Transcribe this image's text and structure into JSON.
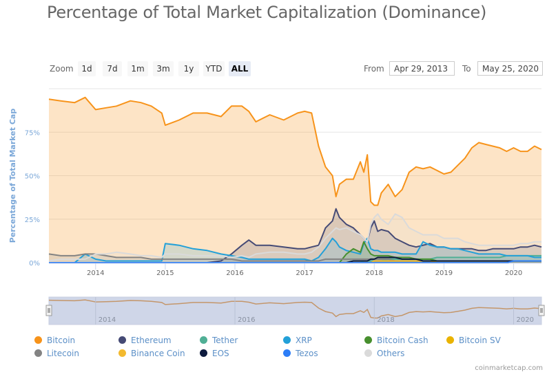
{
  "title": "Percentage of Total Market Capitalization (Dominance)",
  "range_selector": {
    "zoom_label": "Zoom",
    "buttons": [
      "1d",
      "7d",
      "1m",
      "3m",
      "1y",
      "YTD",
      "ALL"
    ],
    "active": "ALL",
    "from_label": "From",
    "from_value": "Apr 29, 2013",
    "to_label": "To",
    "to_value": "May 25, 2020"
  },
  "credit": "coinmarketcap.com",
  "chart_data": {
    "type": "area",
    "title": "Percentage of Total Market Capitalization (Dominance)",
    "ylabel": "Percentage of Total Market Cap",
    "xlabel": "",
    "ylim": [
      0,
      100
    ],
    "xlim": [
      2013.33,
      2020.4
    ],
    "y_ticks": [
      "0%",
      "25%",
      "50%",
      "75%"
    ],
    "y_tick_values": [
      0,
      25,
      50,
      75
    ],
    "x_ticks": [
      "2014",
      "2015",
      "2016",
      "2017",
      "2018",
      "2019",
      "2020"
    ],
    "x_tick_values": [
      2014,
      2015,
      2016,
      2017,
      2018,
      2019,
      2020
    ],
    "grid": true,
    "legend_position": "bottom",
    "navigator_ticks": [
      "2014",
      "2016",
      "2018",
      "2020"
    ],
    "x": [
      2013.33,
      2013.5,
      2013.7,
      2013.85,
      2014.0,
      2014.15,
      2014.3,
      2014.5,
      2014.65,
      2014.8,
      2014.95,
      2015.0,
      2015.2,
      2015.4,
      2015.6,
      2015.8,
      2015.95,
      2016.1,
      2016.2,
      2016.3,
      2016.5,
      2016.7,
      2016.9,
      2017.0,
      2017.1,
      2017.2,
      2017.3,
      2017.4,
      2017.45,
      2017.5,
      2017.6,
      2017.7,
      2017.8,
      2017.85,
      2017.9,
      2017.95,
      2018.0,
      2018.05,
      2018.1,
      2018.2,
      2018.3,
      2018.4,
      2018.5,
      2018.6,
      2018.7,
      2018.8,
      2018.9,
      2019.0,
      2019.1,
      2019.2,
      2019.3,
      2019.4,
      2019.5,
      2019.6,
      2019.7,
      2019.8,
      2019.9,
      2020.0,
      2020.1,
      2020.2,
      2020.3,
      2020.4
    ],
    "series": [
      {
        "name": "Bitcoin",
        "color": "#f7931a",
        "values": [
          94,
          93,
          92,
          95,
          88,
          89,
          90,
          93,
          92,
          90,
          86,
          79,
          82,
          86,
          86,
          84,
          90,
          90,
          87,
          81,
          85,
          82,
          86,
          87,
          86,
          67,
          55,
          50,
          38,
          45,
          48,
          48,
          58,
          52,
          62,
          35,
          33,
          33,
          40,
          45,
          38,
          42,
          52,
          55,
          54,
          55,
          53,
          51,
          52,
          56,
          60,
          66,
          69,
          68,
          67,
          66,
          64,
          66,
          64,
          64,
          67,
          65
        ]
      },
      {
        "name": "Ethereum",
        "color": "#454a75",
        "values": [
          0,
          0,
          0,
          0,
          0,
          0,
          0,
          0,
          0,
          0,
          0,
          0,
          0,
          0,
          0,
          1,
          5,
          10,
          13,
          10,
          10,
          9,
          8,
          8,
          9,
          10,
          20,
          24,
          31,
          26,
          22,
          20,
          16,
          14,
          12,
          20,
          24,
          18,
          19,
          18,
          14,
          12,
          10,
          9,
          10,
          11,
          9,
          9,
          8,
          8,
          8,
          8,
          7,
          7,
          8,
          8,
          8,
          8,
          9,
          9,
          10,
          9
        ]
      },
      {
        "name": "Tether",
        "color": "#50af95",
        "values": [
          0,
          0,
          0,
          0,
          0,
          0,
          0,
          0,
          0,
          0,
          0,
          0,
          0,
          0,
          0,
          0,
          0,
          0,
          0,
          0,
          0,
          0,
          0,
          0,
          0,
          0,
          0,
          0,
          0,
          0,
          0,
          0,
          0,
          1,
          1,
          1,
          1,
          1,
          1,
          2,
          2,
          2,
          2,
          2,
          2,
          2,
          3,
          3,
          3,
          3,
          3,
          3,
          3,
          3,
          3,
          3,
          4,
          4,
          4,
          4,
          4,
          4
        ]
      },
      {
        "name": "XRP",
        "color": "#23a0d8",
        "values": [
          0,
          0,
          0,
          5,
          2,
          1,
          1,
          1,
          1,
          1,
          1,
          11,
          10,
          8,
          7,
          5,
          4,
          3,
          2,
          2,
          2,
          2,
          2,
          2,
          1,
          3,
          8,
          14,
          12,
          9,
          7,
          6,
          5,
          11,
          14,
          8,
          7,
          7,
          6,
          6,
          6,
          5,
          5,
          5,
          12,
          10,
          9,
          9,
          8,
          8,
          7,
          6,
          5,
          5,
          5,
          5,
          4,
          4,
          4,
          4,
          3,
          3
        ]
      },
      {
        "name": "Bitcoin Cash",
        "color": "#478f2e",
        "values": [
          0,
          0,
          0,
          0,
          0,
          0,
          0,
          0,
          0,
          0,
          0,
          0,
          0,
          0,
          0,
          0,
          0,
          0,
          0,
          0,
          0,
          0,
          0,
          0,
          0,
          0,
          0,
          0,
          0,
          0,
          5,
          8,
          6,
          12,
          8,
          5,
          4,
          4,
          4,
          4,
          3,
          3,
          3,
          2,
          2,
          2,
          1,
          1,
          1,
          1,
          1,
          1,
          1,
          1,
          1,
          1,
          1,
          1,
          1,
          1,
          1,
          1
        ]
      },
      {
        "name": "Bitcoin SV",
        "color": "#eab300",
        "values": [
          0,
          0,
          0,
          0,
          0,
          0,
          0,
          0,
          0,
          0,
          0,
          0,
          0,
          0,
          0,
          0,
          0,
          0,
          0,
          0,
          0,
          0,
          0,
          0,
          0,
          0,
          0,
          0,
          0,
          0,
          0,
          0,
          0,
          0,
          0,
          0,
          0,
          0,
          0,
          0,
          0,
          0,
          0,
          0,
          0,
          0,
          1,
          1,
          1,
          1,
          1,
          1,
          1,
          1,
          1,
          1,
          1,
          1,
          1,
          1,
          1,
          1
        ]
      },
      {
        "name": "Litecoin",
        "color": "#838383",
        "values": [
          5,
          4,
          4,
          5,
          5,
          4,
          3,
          3,
          3,
          2,
          2,
          2,
          2,
          2,
          2,
          2,
          2,
          1,
          1,
          1,
          1,
          1,
          1,
          1,
          1,
          1,
          2,
          2,
          2,
          2,
          2,
          2,
          2,
          2,
          2,
          2,
          2,
          2,
          2,
          2,
          1,
          1,
          1,
          1,
          1,
          1,
          1,
          1,
          1,
          1,
          1,
          1,
          1,
          1,
          1,
          1,
          1,
          1,
          1,
          1,
          1,
          1
        ]
      },
      {
        "name": "Binance Coin",
        "color": "#f3ba2f",
        "values": [
          0,
          0,
          0,
          0,
          0,
          0,
          0,
          0,
          0,
          0,
          0,
          0,
          0,
          0,
          0,
          0,
          0,
          0,
          0,
          0,
          0,
          0,
          0,
          0,
          0,
          0,
          0,
          0,
          0,
          0,
          0,
          0,
          0,
          0,
          0,
          0,
          1,
          1,
          1,
          1,
          1,
          1,
          1,
          1,
          1,
          1,
          1,
          1,
          1,
          1,
          1,
          1,
          1,
          1,
          1,
          1,
          1,
          1,
          1,
          1,
          1,
          1
        ]
      },
      {
        "name": "EOS",
        "color": "#0d1b3e",
        "values": [
          0,
          0,
          0,
          0,
          0,
          0,
          0,
          0,
          0,
          0,
          0,
          0,
          0,
          0,
          0,
          0,
          0,
          0,
          0,
          0,
          0,
          0,
          0,
          0,
          0,
          0,
          0,
          0,
          0,
          0,
          0,
          1,
          1,
          1,
          1,
          2,
          2,
          3,
          3,
          3,
          3,
          2,
          2,
          2,
          1,
          1,
          1,
          1,
          1,
          1,
          1,
          1,
          1,
          1,
          1,
          1,
          1,
          1,
          1,
          1,
          1,
          1
        ]
      },
      {
        "name": "Tezos",
        "color": "#2c7df7",
        "values": [
          0,
          0,
          0,
          0,
          0,
          0,
          0,
          0,
          0,
          0,
          0,
          0,
          0,
          0,
          0,
          0,
          0,
          0,
          0,
          0,
          0,
          0,
          0,
          0,
          0,
          0,
          0,
          0,
          0,
          0,
          0,
          0,
          0,
          0,
          0,
          0,
          0,
          0,
          0,
          0,
          0,
          0,
          0,
          0,
          0,
          0,
          0,
          0,
          0,
          0,
          0,
          0,
          0,
          0,
          0,
          0,
          0,
          1,
          1,
          1,
          1,
          1
        ]
      },
      {
        "name": "Others",
        "color": "#dadada",
        "values": [
          1,
          2,
          2,
          2,
          5,
          5,
          6,
          5,
          4,
          4,
          3,
          5,
          5,
          4,
          4,
          4,
          3,
          4,
          3,
          5,
          6,
          6,
          5,
          5,
          6,
          9,
          14,
          18,
          20,
          19,
          20,
          18,
          16,
          14,
          12,
          22,
          26,
          28,
          25,
          22,
          28,
          26,
          20,
          18,
          16,
          16,
          16,
          14,
          14,
          14,
          12,
          11,
          10,
          10,
          10,
          10,
          10,
          10,
          11,
          11,
          12,
          12
        ]
      }
    ]
  }
}
